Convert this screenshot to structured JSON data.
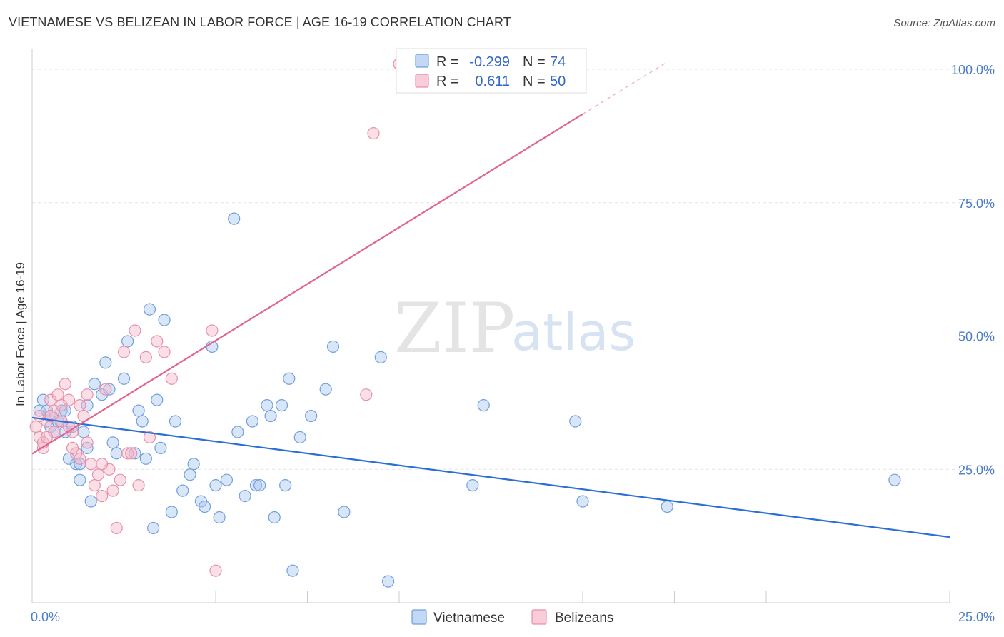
{
  "title": "VIETNAMESE VS BELIZEAN IN LABOR FORCE | AGE 16-19 CORRELATION CHART",
  "source": "Source: ZipAtlas.com",
  "watermark": {
    "zip": "ZIP",
    "atlas": "atlas"
  },
  "legend": {
    "rows": [
      {
        "r_label": "R =",
        "r_value": "-0.299",
        "n_label": "N =",
        "n_value": "74",
        "color": "#aac8f0"
      },
      {
        "r_label": "R =",
        "r_value": "0.611",
        "n_label": "N =",
        "n_value": "50",
        "color": "#f5b7c9"
      }
    ]
  },
  "bottom_legend": [
    {
      "label": "Vietnamese",
      "color": "#aac8f0"
    },
    {
      "label": "Belizeans",
      "color": "#f5b7c9"
    }
  ],
  "chart_data": {
    "type": "scatter",
    "title": "VIETNAMESE VS BELIZEAN IN LABOR FORCE | AGE 16-19 CORRELATION CHART",
    "xlabel": "",
    "ylabel": "In Labor Force | Age 16-19",
    "xlim": [
      0,
      25
    ],
    "ylim": [
      0,
      105
    ],
    "x_tick_labels": [
      {
        "value": 0,
        "label": "0.0%"
      },
      {
        "value": 25,
        "label": "25.0%"
      }
    ],
    "y_tick_labels": [
      {
        "value": 25,
        "label": "25.0%"
      },
      {
        "value": 50,
        "label": "50.0%"
      },
      {
        "value": 75,
        "label": "75.0%"
      },
      {
        "value": 100,
        "label": "100.0%"
      }
    ],
    "series": [
      {
        "name": "Vietnamese",
        "color": "#6fa0e0",
        "fill": "#aac8f0",
        "trend": {
          "x0": 0,
          "y0": 34.7,
          "x1": 25,
          "y1": 12.3,
          "color": "#2a6ed6"
        },
        "points": [
          [
            0.2,
            36
          ],
          [
            0.3,
            38
          ],
          [
            0.4,
            36
          ],
          [
            0.5,
            35
          ],
          [
            0.5,
            33
          ],
          [
            0.7,
            34
          ],
          [
            0.8,
            36
          ],
          [
            0.9,
            32
          ],
          [
            1.0,
            27
          ],
          [
            1.1,
            33
          ],
          [
            1.2,
            26
          ],
          [
            1.3,
            23
          ],
          [
            1.4,
            32
          ],
          [
            1.5,
            29
          ],
          [
            1.6,
            19
          ],
          [
            1.7,
            41
          ],
          [
            1.9,
            39
          ],
          [
            2.2,
            30
          ],
          [
            2.3,
            28
          ],
          [
            2.5,
            42
          ],
          [
            2.9,
            36
          ],
          [
            3.0,
            34
          ],
          [
            3.1,
            27
          ],
          [
            3.4,
            38
          ],
          [
            3.5,
            29
          ],
          [
            3.8,
            17
          ],
          [
            4.1,
            21
          ],
          [
            4.3,
            24
          ],
          [
            4.6,
            19
          ],
          [
            4.9,
            48
          ],
          [
            5.1,
            16
          ],
          [
            5.3,
            23
          ],
          [
            5.6,
            32
          ],
          [
            5.8,
            20
          ],
          [
            6.0,
            34
          ],
          [
            6.1,
            22
          ],
          [
            6.2,
            22
          ],
          [
            6.4,
            37
          ],
          [
            6.6,
            16
          ],
          [
            7.0,
            42
          ],
          [
            7.1,
            6
          ],
          [
            7.3,
            31
          ],
          [
            7.6,
            35
          ],
          [
            8.0,
            40
          ],
          [
            8.2,
            48
          ],
          [
            9.5,
            46
          ],
          [
            9.7,
            4
          ],
          [
            12.0,
            22
          ],
          [
            12.3,
            37
          ],
          [
            14.8,
            34
          ],
          [
            15.0,
            19
          ],
          [
            17.3,
            18
          ],
          [
            23.5,
            23
          ],
          [
            0.6,
            32
          ],
          [
            0.8,
            34
          ],
          [
            1.5,
            37
          ],
          [
            2.0,
            45
          ],
          [
            2.6,
            49
          ],
          [
            3.2,
            55
          ],
          [
            3.6,
            53
          ],
          [
            4.4,
            26
          ],
          [
            5.5,
            72
          ],
          [
            6.5,
            35
          ],
          [
            6.9,
            22
          ],
          [
            3.9,
            34
          ],
          [
            1.3,
            26
          ],
          [
            2.8,
            28
          ],
          [
            4.7,
            18
          ],
          [
            0.9,
            36
          ],
          [
            3.3,
            14
          ],
          [
            2.1,
            40
          ],
          [
            6.8,
            37
          ],
          [
            8.5,
            17
          ],
          [
            5.0,
            22
          ]
        ]
      },
      {
        "name": "Belizeans",
        "color": "#e890ab",
        "fill": "#f5b7c9",
        "trend": {
          "x0": 0,
          "y0": 27.9,
          "x1": 15,
          "y1": 91.6,
          "color": "#e0658f"
        },
        "points": [
          [
            0.1,
            33
          ],
          [
            0.2,
            31
          ],
          [
            0.3,
            29
          ],
          [
            0.4,
            34
          ],
          [
            0.5,
            38
          ],
          [
            0.6,
            36
          ],
          [
            0.7,
            39
          ],
          [
            0.8,
            34
          ],
          [
            0.9,
            41
          ],
          [
            1.0,
            38
          ],
          [
            1.1,
            32
          ],
          [
            1.2,
            28
          ],
          [
            1.3,
            37
          ],
          [
            1.4,
            35
          ],
          [
            1.5,
            30
          ],
          [
            1.6,
            26
          ],
          [
            1.7,
            22
          ],
          [
            1.8,
            24
          ],
          [
            1.9,
            20
          ],
          [
            2.0,
            40
          ],
          [
            2.1,
            25
          ],
          [
            2.2,
            21
          ],
          [
            2.3,
            14
          ],
          [
            2.4,
            23
          ],
          [
            2.5,
            47
          ],
          [
            2.6,
            28
          ],
          [
            2.8,
            51
          ],
          [
            2.9,
            22
          ],
          [
            3.1,
            46
          ],
          [
            3.2,
            31
          ],
          [
            3.4,
            49
          ],
          [
            3.6,
            47
          ],
          [
            3.8,
            42
          ],
          [
            4.9,
            51
          ],
          [
            5.0,
            6
          ],
          [
            9.3,
            88
          ],
          [
            10.0,
            101
          ],
          [
            0.3,
            30
          ],
          [
            0.5,
            35
          ],
          [
            0.8,
            37
          ],
          [
            1.1,
            29
          ],
          [
            1.3,
            27
          ],
          [
            0.2,
            35
          ],
          [
            0.6,
            32
          ],
          [
            1.0,
            33
          ],
          [
            1.5,
            39
          ],
          [
            2.7,
            28
          ],
          [
            9.1,
            39
          ],
          [
            0.4,
            31
          ],
          [
            1.9,
            26
          ]
        ]
      }
    ]
  }
}
